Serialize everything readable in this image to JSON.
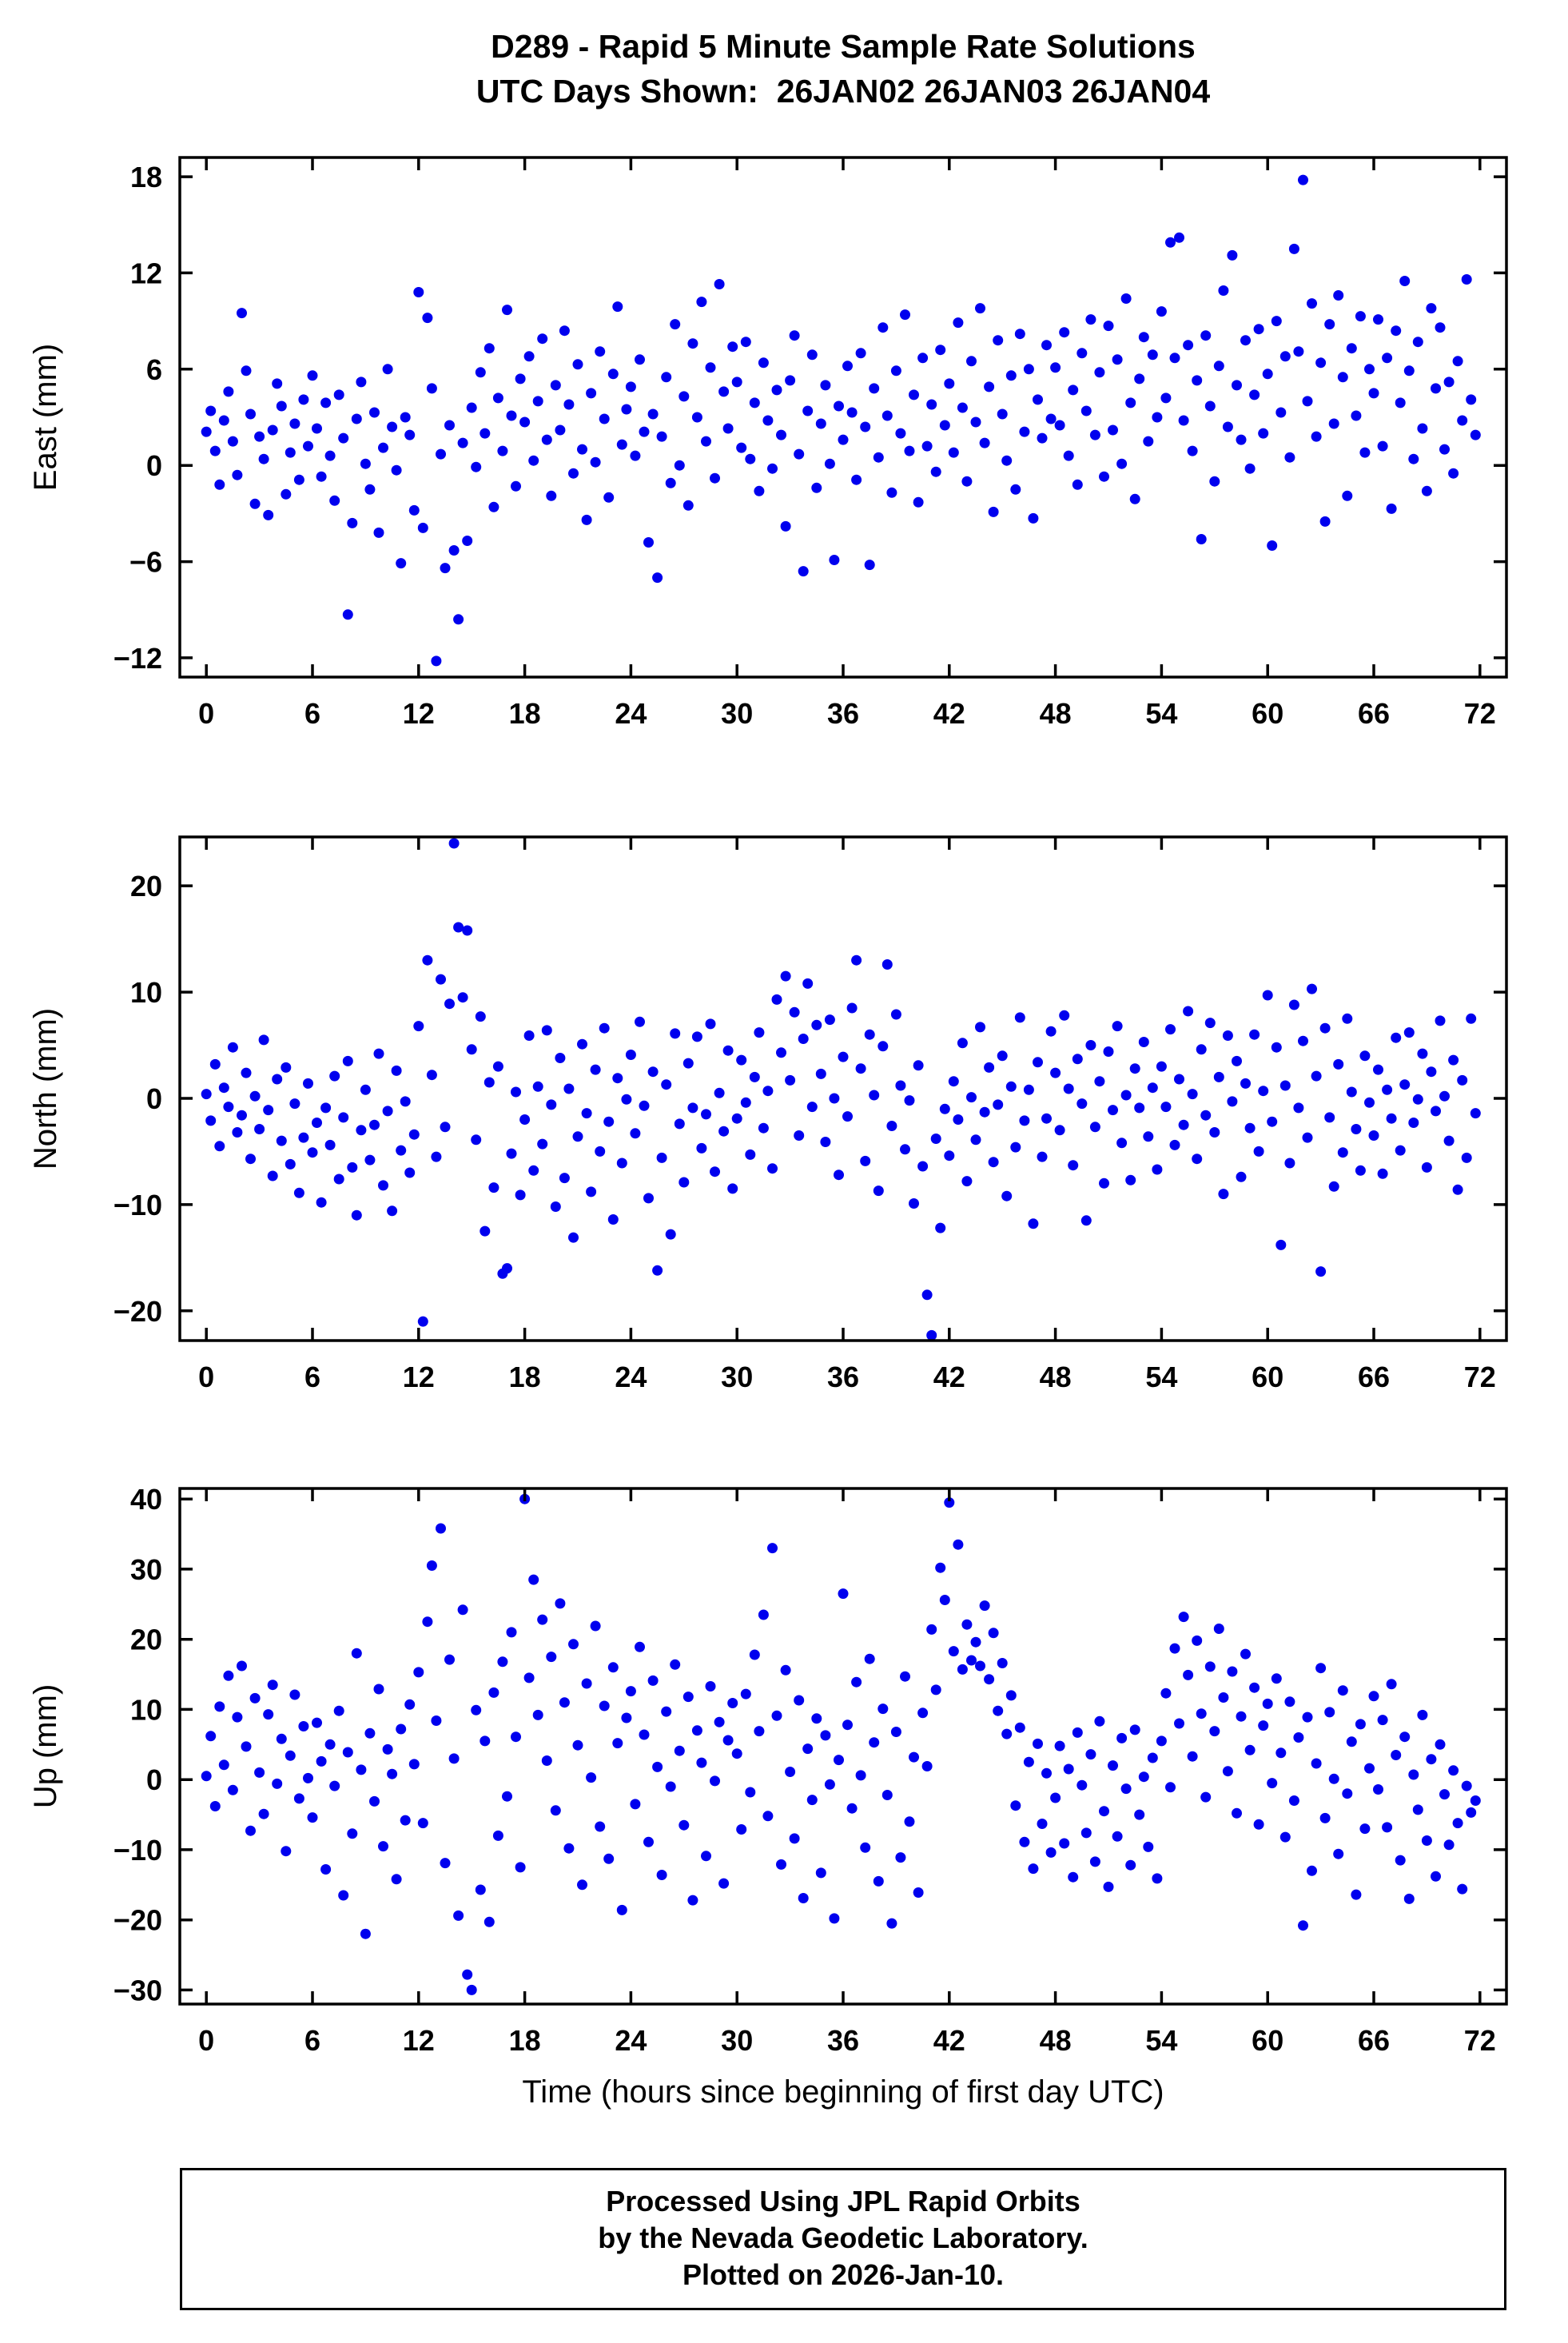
{
  "page": {
    "title_line1": "D289 - Rapid 5 Minute Sample Rate Solutions",
    "title_line2": "UTC Days Shown:  26JAN02 26JAN03 26JAN04",
    "xlabel": "Time (hours since beginning of first day UTC)",
    "footer_lines": [
      "Processed Using JPL Rapid Orbits",
      "by the Nevada Geodetic Laboratory.",
      "Plotted on 2026-Jan-10."
    ]
  },
  "style": {
    "marker_color": "#0000EE",
    "axis_color": "#000000"
  },
  "chart_data": [
    {
      "id": "east",
      "type": "scatter",
      "ylabel": "East (mm)",
      "ylim": [
        -13.2,
        19.2
      ],
      "yticks": [
        -12,
        -6,
        0,
        6,
        12,
        18
      ],
      "xlim": [
        -1.5,
        73.5
      ],
      "xticks": [
        0,
        6,
        12,
        18,
        24,
        30,
        36,
        42,
        48,
        54,
        60,
        66,
        72
      ],
      "x_start": 0,
      "x_step": 0.25,
      "y": [
        2.1,
        3.4,
        0.9,
        -1.2,
        2.8,
        4.6,
        1.5,
        -0.6,
        9.5,
        5.9,
        3.2,
        -2.4,
        1.8,
        0.4,
        -3.1,
        2.2,
        5.1,
        3.7,
        -1.8,
        0.8,
        2.6,
        -0.9,
        4.1,
        1.2,
        5.6,
        2.3,
        -0.7,
        3.9,
        0.6,
        -2.2,
        4.4,
        1.7,
        -9.3,
        -3.6,
        2.9,
        5.2,
        0.1,
        -1.5,
        3.3,
        -4.2,
        1.1,
        6.0,
        2.4,
        -0.3,
        -6.1,
        3.0,
        1.9,
        -2.8,
        10.8,
        -3.9,
        9.2,
        4.8,
        -12.2,
        0.7,
        -6.4,
        2.5,
        -5.3,
        -9.6,
        1.4,
        -4.7,
        3.6,
        -0.1,
        5.8,
        2.0,
        7.3,
        -2.6,
        4.2,
        0.9,
        9.7,
        3.1,
        -1.3,
        5.4,
        2.7,
        6.8,
        0.3,
        4.0,
        7.9,
        1.6,
        -1.9,
        5.0,
        2.2,
        8.4,
        3.8,
        -0.5,
        6.3,
        1.0,
        -3.4,
        4.5,
        0.2,
        7.1,
        2.9,
        -2.0,
        5.7,
        9.9,
        1.3,
        3.5,
        4.9,
        0.6,
        6.6,
        2.1,
        -4.8,
        3.2,
        -7.0,
        1.8,
        5.5,
        -1.1,
        8.8,
        0.0,
        4.3,
        -2.5,
        7.6,
        3.0,
        10.2,
        1.5,
        6.1,
        -0.8,
        11.3,
        4.6,
        2.3,
        7.4,
        5.2,
        1.1,
        7.7,
        0.4,
        3.9,
        -1.6,
        6.4,
        2.8,
        -0.2,
        4.7,
        1.9,
        -3.8,
        5.3,
        8.1,
        0.7,
        -6.6,
        3.4,
        6.9,
        -1.4,
        2.6,
        5.0,
        0.1,
        -5.9,
        3.7,
        1.6,
        6.2,
        3.3,
        -0.9,
        7.0,
        2.4,
        -6.2,
        4.8,
        0.5,
        8.6,
        3.1,
        -1.7,
        5.9,
        2.0,
        9.4,
        0.9,
        4.4,
        -2.3,
        6.7,
        1.2,
        3.8,
        -0.4,
        7.2,
        2.5,
        5.1,
        0.8,
        8.9,
        3.6,
        -1.0,
        6.5,
        2.7,
        9.8,
        1.4,
        4.9,
        -2.9,
        7.8,
        3.2,
        0.3,
        5.6,
        -1.5,
        8.2,
        2.1,
        6.0,
        -3.3,
        4.1,
        1.7,
        7.5,
        2.9,
        6.1,
        2.5,
        8.3,
        0.6,
        4.7,
        -1.2,
        7.0,
        3.4,
        9.1,
        1.9,
        5.8,
        -0.7,
        8.7,
        2.2,
        6.6,
        0.1,
        10.4,
        3.9,
        -2.1,
        5.4,
        8.0,
        1.5,
        6.9,
        3.0,
        9.6,
        4.2,
        13.9,
        6.7,
        14.2,
        2.8,
        7.5,
        0.9,
        5.3,
        -4.6,
        8.1,
        3.7,
        -1.0,
        6.2,
        10.9,
        2.4,
        13.1,
        5.0,
        1.6,
        7.8,
        -0.2,
        4.4,
        8.5,
        2.0,
        5.7,
        -5.0,
        9.0,
        3.3,
        6.8,
        0.5,
        13.5,
        7.1,
        17.8,
        4.0,
        10.1,
        1.8,
        6.4,
        -3.5,
        8.8,
        2.6,
        10.6,
        5.5,
        -1.9,
        7.3,
        3.1,
        9.3,
        0.8,
        6.0,
        4.5,
        9.1,
        1.2,
        6.7,
        -2.7,
        8.4,
        3.9,
        11.5,
        5.9,
        0.4,
        7.7,
        2.3,
        -1.6,
        9.8,
        4.8,
        8.6,
        1.0,
        5.2,
        -0.5,
        6.5,
        2.8,
        11.6,
        4.1,
        1.9
      ]
    },
    {
      "id": "north",
      "type": "scatter",
      "ylabel": "North (mm)",
      "ylim": [
        -22.8,
        24.6
      ],
      "yticks": [
        -20,
        -10,
        0,
        10,
        20
      ],
      "xlim": [
        -1.5,
        73.5
      ],
      "xticks": [
        0,
        6,
        12,
        18,
        24,
        30,
        36,
        42,
        48,
        54,
        60,
        66,
        72
      ],
      "x_start": 0,
      "x_step": 0.25,
      "y": [
        0.4,
        -2.1,
        3.2,
        -4.5,
        1.0,
        -0.8,
        4.8,
        -3.2,
        -1.6,
        2.4,
        -5.7,
        0.2,
        -2.9,
        5.5,
        -1.1,
        -7.3,
        1.8,
        -4.0,
        2.9,
        -6.2,
        -0.5,
        -8.9,
        -3.7,
        1.4,
        -5.1,
        -2.3,
        -9.8,
        -0.9,
        -4.4,
        2.1,
        -7.6,
        -1.8,
        3.5,
        -6.5,
        -11.0,
        -3.0,
        0.8,
        -5.8,
        -2.5,
        4.2,
        -8.2,
        -1.2,
        -10.6,
        2.6,
        -4.9,
        -0.3,
        -7.0,
        -3.4,
        6.8,
        -21.0,
        13.0,
        2.2,
        -5.5,
        11.2,
        -2.7,
        8.9,
        24.0,
        16.1,
        9.5,
        15.8,
        4.6,
        -3.9,
        7.7,
        -12.5,
        1.5,
        -8.4,
        3.0,
        -16.5,
        -16.0,
        -5.2,
        0.6,
        -9.1,
        -2.0,
        5.9,
        -6.8,
        1.1,
        -4.3,
        6.4,
        -0.6,
        -10.2,
        3.8,
        -7.5,
        0.9,
        -13.1,
        -3.6,
        5.1,
        -1.4,
        -8.8,
        2.7,
        -5.0,
        6.6,
        -2.2,
        -11.4,
        1.9,
        -6.1,
        -0.1,
        4.1,
        -3.3,
        7.2,
        -0.7,
        -9.4,
        2.5,
        -16.2,
        -5.6,
        1.3,
        -12.8,
        6.1,
        -2.4,
        -7.9,
        3.3,
        -0.9,
        5.8,
        -4.7,
        -1.5,
        7.0,
        -6.9,
        0.5,
        -3.1,
        4.5,
        -8.5,
        -1.9,
        3.6,
        -0.4,
        -5.3,
        2.0,
        6.2,
        -2.8,
        0.7,
        -6.6,
        9.3,
        4.3,
        11.5,
        1.7,
        8.1,
        -3.5,
        5.6,
        10.8,
        -0.8,
        6.9,
        2.3,
        -4.1,
        7.4,
        0.0,
        -7.2,
        3.9,
        -1.7,
        8.5,
        13.0,
        2.8,
        -5.9,
        6.0,
        0.3,
        -8.7,
        4.9,
        12.6,
        -2.6,
        7.9,
        1.2,
        -4.8,
        -0.2,
        -9.9,
        3.1,
        -6.4,
        -18.5,
        -22.3,
        -3.8,
        -12.2,
        -1.0,
        -5.4,
        1.6,
        -2.0,
        5.2,
        -7.8,
        0.1,
        -3.9,
        6.7,
        -1.3,
        2.9,
        -6.0,
        -0.6,
        4.0,
        -9.2,
        1.1,
        -4.6,
        7.6,
        -2.1,
        0.8,
        -11.8,
        3.4,
        -5.5,
        -1.9,
        6.3,
        2.4,
        -3.0,
        7.8,
        0.9,
        -6.3,
        3.7,
        -0.5,
        -11.5,
        5.0,
        -2.7,
        1.6,
        -8.0,
        4.4,
        -1.1,
        6.8,
        -4.2,
        0.3,
        -7.7,
        2.8,
        -0.9,
        5.3,
        -3.6,
        1.0,
        -6.7,
        3.0,
        -0.8,
        6.5,
        -4.4,
        1.8,
        -2.5,
        8.2,
        0.4,
        -5.7,
        4.6,
        -1.6,
        7.1,
        -3.2,
        2.0,
        -9.0,
        5.9,
        -0.3,
        3.5,
        -7.4,
        1.4,
        -2.8,
        6.0,
        -5.0,
        0.7,
        9.7,
        -2.2,
        4.8,
        -13.8,
        1.2,
        -6.1,
        8.8,
        -0.9,
        5.4,
        -3.7,
        10.3,
        2.1,
        -16.3,
        6.6,
        -1.8,
        -8.3,
        3.2,
        -5.1,
        7.5,
        0.6,
        -2.9,
        -6.8,
        4.0,
        -0.4,
        -3.5,
        2.7,
        -7.1,
        0.8,
        -1.9,
        5.7,
        -4.9,
        1.3,
        6.2,
        -2.3,
        -0.1,
        4.2,
        -6.5,
        2.5,
        -1.2,
        7.3,
        0.2,
        -4.0,
        3.6,
        -8.6,
        1.7,
        -5.6,
        7.5,
        -1.4
      ]
    },
    {
      "id": "up",
      "type": "scatter",
      "ylabel": "Up (mm)",
      "ylim": [
        -32,
        41.5
      ],
      "yticks": [
        -30,
        -20,
        -10,
        0,
        10,
        20,
        30,
        40
      ],
      "xlim": [
        -1.5,
        73.5
      ],
      "xticks": [
        0,
        6,
        12,
        18,
        24,
        30,
        36,
        42,
        48,
        54,
        60,
        66,
        72
      ],
      "x_start": 0,
      "x_step": 0.25,
      "y": [
        0.5,
        6.2,
        -3.8,
        10.4,
        2.1,
        14.8,
        -1.5,
        8.9,
        16.2,
        4.7,
        -7.3,
        11.6,
        1.0,
        -4.9,
        9.3,
        13.5,
        -0.6,
        5.8,
        -10.2,
        3.4,
        12.1,
        -2.7,
        7.6,
        0.2,
        -5.4,
        8.1,
        2.6,
        -12.8,
        5.0,
        -0.9,
        9.8,
        -16.5,
        3.9,
        -7.7,
        18.0,
        1.4,
        -22.0,
        6.6,
        -3.1,
        12.9,
        -9.5,
        4.3,
        0.8,
        -14.2,
        7.2,
        -5.8,
        10.7,
        2.2,
        15.3,
        -6.2,
        22.5,
        30.5,
        8.4,
        35.8,
        -11.9,
        17.1,
        3.0,
        -19.4,
        24.2,
        -27.8,
        -30.0,
        9.9,
        -15.7,
        5.5,
        -20.3,
        12.4,
        -8.0,
        16.8,
        -2.4,
        21.0,
        6.1,
        -12.5,
        40.0,
        14.5,
        28.5,
        9.2,
        22.8,
        2.7,
        17.5,
        -4.4,
        25.1,
        11.0,
        -9.8,
        19.3,
        4.9,
        -15.0,
        13.7,
        0.3,
        21.9,
        -6.7,
        10.5,
        -11.3,
        16.0,
        5.2,
        -18.6,
        8.8,
        12.6,
        -3.5,
        18.9,
        6.4,
        -8.9,
        14.1,
        1.8,
        -13.6,
        9.7,
        -1.0,
        16.4,
        4.1,
        -6.5,
        11.8,
        -17.2,
        7.0,
        2.4,
        -10.9,
        13.3,
        -0.2,
        8.2,
        -14.8,
        5.6,
        10.9,
        3.7,
        -7.1,
        12.2,
        -1.8,
        17.8,
        6.9,
        23.5,
        -5.2,
        33.0,
        9.1,
        -12.1,
        15.6,
        1.1,
        -8.4,
        11.3,
        -16.9,
        4.4,
        -2.9,
        8.7,
        -13.3,
        6.3,
        -0.7,
        -19.8,
        2.8,
        26.5,
        7.8,
        -4.1,
        13.9,
        0.6,
        -9.7,
        17.2,
        5.3,
        -14.5,
        10.1,
        -2.2,
        -20.5,
        6.8,
        -11.1,
        14.7,
        -6.0,
        3.2,
        -16.1,
        9.5,
        1.9,
        21.4,
        12.8,
        30.2,
        25.6,
        39.5,
        18.3,
        33.5,
        15.7,
        22.1,
        17.0,
        19.6,
        16.2,
        24.8,
        14.3,
        20.9,
        9.8,
        16.6,
        6.5,
        12.0,
        -3.7,
        7.4,
        -8.9,
        2.5,
        -12.7,
        5.1,
        -6.3,
        0.9,
        -10.4,
        -2.6,
        4.8,
        -9.1,
        1.5,
        -13.9,
        6.7,
        -0.8,
        -7.6,
        3.6,
        -11.7,
        8.3,
        -4.5,
        -15.3,
        2.0,
        -8.1,
        5.9,
        -1.3,
        -12.2,
        7.1,
        -5.0,
        0.4,
        -9.6,
        3.1,
        -14.1,
        5.5,
        12.3,
        -1.1,
        18.7,
        8.0,
        23.2,
        14.9,
        3.3,
        19.8,
        9.4,
        -2.5,
        16.1,
        6.9,
        21.5,
        11.7,
        1.2,
        15.4,
        -4.8,
        9.0,
        17.9,
        4.2,
        13.1,
        -6.4,
        7.7,
        10.8,
        -0.5,
        14.4,
        3.8,
        -8.2,
        11.1,
        -3.0,
        6.0,
        -20.8,
        8.9,
        -13.0,
        2.3,
        15.9,
        -5.5,
        9.6,
        0.1,
        -10.6,
        12.7,
        -2.0,
        5.4,
        -16.4,
        7.9,
        -7.0,
        1.6,
        11.9,
        -1.4,
        8.5,
        -6.8,
        13.6,
        3.5,
        -11.5,
        6.1,
        -17.0,
        0.7,
        -4.3,
        9.2,
        -8.7,
        2.9,
        -13.8,
        5.0,
        -2.1,
        -9.3,
        1.3,
        -6.2,
        -15.6,
        -0.9,
        -4.7,
        -3.0
      ]
    }
  ]
}
